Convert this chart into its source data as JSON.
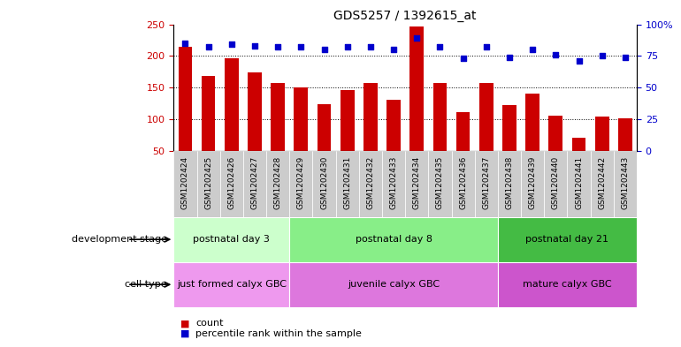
{
  "title": "GDS5257 / 1392615_at",
  "categories": [
    "GSM1202424",
    "GSM1202425",
    "GSM1202426",
    "GSM1202427",
    "GSM1202428",
    "GSM1202429",
    "GSM1202430",
    "GSM1202431",
    "GSM1202432",
    "GSM1202433",
    "GSM1202434",
    "GSM1202435",
    "GSM1202436",
    "GSM1202437",
    "GSM1202438",
    "GSM1202439",
    "GSM1202440",
    "GSM1202441",
    "GSM1202442",
    "GSM1202443"
  ],
  "bar_values": [
    215,
    168,
    197,
    174,
    157,
    151,
    124,
    146,
    157,
    131,
    247,
    157,
    111,
    157,
    123,
    141,
    106,
    71,
    104,
    101
  ],
  "percentile_values": [
    85,
    82,
    84,
    83,
    82,
    82,
    80,
    82,
    82,
    80,
    89,
    82,
    73,
    82,
    74,
    80,
    76,
    71,
    75,
    74
  ],
  "bar_color": "#cc0000",
  "percentile_color": "#0000cc",
  "ylim_left": [
    50,
    250
  ],
  "ylim_right": [
    0,
    100
  ],
  "yticks_left": [
    50,
    100,
    150,
    200,
    250
  ],
  "yticks_right": [
    0,
    25,
    50,
    75,
    100
  ],
  "ytick_labels_right": [
    "0",
    "25",
    "50",
    "75",
    "100%"
  ],
  "grid_lines": [
    100,
    150,
    200
  ],
  "development_stage_groups": [
    {
      "label": "postnatal day 3",
      "start": 0,
      "end": 4,
      "color": "#ccffcc"
    },
    {
      "label": "postnatal day 8",
      "start": 5,
      "end": 13,
      "color": "#88ee88"
    },
    {
      "label": "postnatal day 21",
      "start": 14,
      "end": 19,
      "color": "#44bb44"
    }
  ],
  "cell_type_groups": [
    {
      "label": "just formed calyx GBC",
      "start": 0,
      "end": 4,
      "color": "#ee99ee"
    },
    {
      "label": "juvenile calyx GBC",
      "start": 5,
      "end": 13,
      "color": "#dd77dd"
    },
    {
      "label": "mature calyx GBC",
      "start": 14,
      "end": 19,
      "color": "#cc55cc"
    }
  ],
  "row_labels": [
    "development stage",
    "cell type"
  ],
  "legend_items": [
    {
      "label": "count",
      "color": "#cc0000"
    },
    {
      "label": "percentile rank within the sample",
      "color": "#0000cc"
    }
  ],
  "background_color": "#ffffff",
  "plot_bg_color": "#ffffff",
  "xtick_bg_color": "#cccccc"
}
